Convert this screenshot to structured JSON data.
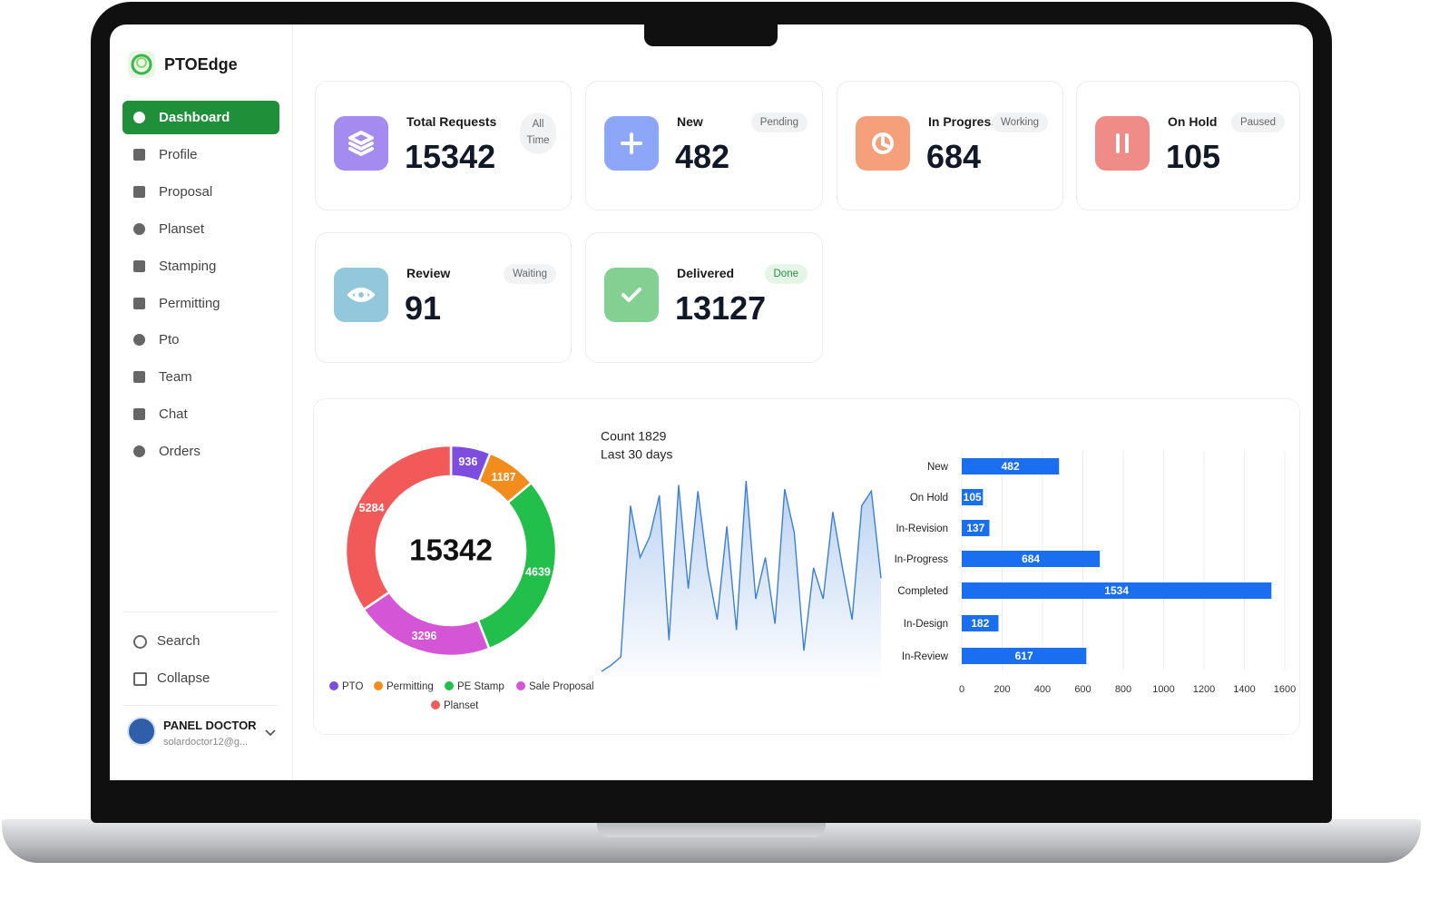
{
  "brand": "PTOEdge",
  "nav": [
    "Dashboard",
    "Profile",
    "Proposal",
    "Planset",
    "Stamping",
    "Permitting",
    "Pto",
    "Team",
    "Chat",
    "Orders"
  ],
  "active_nav": 0,
  "nav_bottom": [
    "Search",
    "Collapse"
  ],
  "user": {
    "name": "PANEL DOCTOR",
    "email": "solardoctor12@g..."
  },
  "cards": [
    {
      "label": "Total Requests",
      "badge": "All Time",
      "value": 15342,
      "color": "#a48bf0",
      "badge_color": "#f1f2f4"
    },
    {
      "label": "New",
      "badge": "Pending",
      "value": 482,
      "color": "#8ea6f7",
      "badge_color": "#f1f2f4"
    },
    {
      "label": "In Progress",
      "badge": "Working",
      "value": 684,
      "color": "#f5a07a",
      "badge_color": "#f1f2f4"
    },
    {
      "label": "On Hold",
      "badge": "Paused",
      "value": 105,
      "color": "#f08c88",
      "badge_color": "#f1f2f4"
    },
    {
      "label": "Review",
      "badge": "Waiting",
      "value": 91,
      "color": "#93c8dc",
      "badge_color": "#f1f2f4"
    },
    {
      "label": "Delivered",
      "badge": "Done",
      "value": 13127,
      "color": "#84cf92",
      "badge_color": "#e5f6e8"
    }
  ],
  "chart_data": [
    {
      "type": "pie",
      "donut": true,
      "center_label": 15342,
      "categories": [
        "PTO",
        "Permitting",
        "PE Stamp",
        "Sale Proposal",
        "Planset"
      ],
      "values": [
        936,
        1187,
        4639,
        3296,
        5284
      ],
      "colors": [
        "#7c4dde",
        "#f28c1c",
        "#22c04a",
        "#d455d6",
        "#f25a5a"
      ]
    },
    {
      "type": "line",
      "title": "Count 1829",
      "subtitle": "Last 30 days",
      "color": "#3b7fd9",
      "values": [
        5,
        8,
        12,
        85,
        60,
        70,
        90,
        20,
        95,
        45,
        92,
        55,
        30,
        75,
        25,
        97,
        40,
        60,
        28,
        93,
        72,
        15,
        55,
        40,
        82,
        55,
        30,
        85,
        92,
        50
      ]
    },
    {
      "type": "bar",
      "orientation": "horizontal",
      "color": "#1a6ff0",
      "grid": true,
      "categories": [
        "New",
        "On Hold",
        "In-Revision",
        "In-Progress",
        "Completed",
        "In-Design",
        "In-Review"
      ],
      "values": [
        482,
        105,
        137,
        684,
        1534,
        182,
        617
      ],
      "xlim": [
        0,
        1600
      ],
      "xticks": [
        0,
        200,
        400,
        600,
        800,
        1000,
        1200,
        1400,
        1600
      ]
    }
  ]
}
